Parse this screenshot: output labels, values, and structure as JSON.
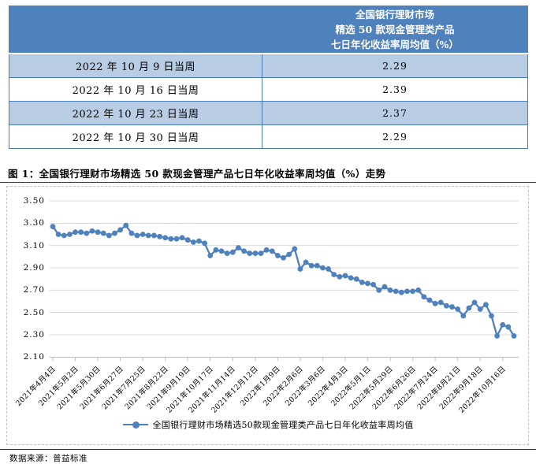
{
  "table": {
    "header_lines": [
      "全国银行理财市场",
      "精选 50 款现金管理类产品",
      "七日年化收益率周均值（%）"
    ],
    "rows": [
      {
        "week": "2022 年 10 月 9 日当周",
        "value": "2.29"
      },
      {
        "week": "2022 年 10 月 16 日当周",
        "value": "2.39"
      },
      {
        "week": "2022 年 10 月 23 日当周",
        "value": "2.37"
      },
      {
        "week": "2022 年 10 月 30 日当周",
        "value": "2.29"
      }
    ]
  },
  "figure": {
    "title": "图 1：全国银行理财市场精选 50 款现金管理产品七日年化收益率周均值（%）走势",
    "source": "数据来源：普益标准"
  },
  "chart_data": {
    "type": "line",
    "title": "全国银行理财市场精选50款现金管理产品七日年化收益率周均值（%）走势",
    "legend_position": "bottom",
    "grid": true,
    "ylim": [
      2.1,
      3.5
    ],
    "y_step": 0.2,
    "y_tick_labels": [
      "3.50",
      "3.30",
      "3.10",
      "2.90",
      "2.70",
      "2.50",
      "2.30",
      "2.10"
    ],
    "x_tick_labels": [
      "2021年4月4日",
      "2021年5月2日",
      "2021年5月30日",
      "2021年6月27日",
      "2021年7月25日",
      "2021年8月22日",
      "2021年9月19日",
      "2021年10月17日",
      "2021年11月14日",
      "2021年12月12日",
      "2022年1月9日",
      "2022年2月6日",
      "2022年3月6日",
      "2022年4月3日",
      "2022年5月1日",
      "2022年5月29日",
      "2022年6月26日",
      "2022年7月24日",
      "2022年8月21日",
      "2022年9月18日",
      "2022年10月16日"
    ],
    "tick_every": 4,
    "series": [
      {
        "name": "全国银行理财市场精选50款现金管理类产品七日年化收益率周均值",
        "values": [
          3.27,
          3.2,
          3.19,
          3.2,
          3.22,
          3.22,
          3.21,
          3.23,
          3.22,
          3.21,
          3.19,
          3.21,
          3.24,
          3.28,
          3.21,
          3.19,
          3.2,
          3.19,
          3.19,
          3.18,
          3.17,
          3.16,
          3.16,
          3.17,
          3.15,
          3.13,
          3.14,
          3.12,
          3.01,
          3.06,
          3.05,
          3.03,
          3.04,
          3.08,
          3.05,
          3.03,
          3.03,
          3.03,
          3.06,
          3.05,
          3.01,
          2.99,
          3.02,
          3.07,
          2.89,
          2.95,
          2.92,
          2.92,
          2.9,
          2.89,
          2.84,
          2.82,
          2.83,
          2.81,
          2.8,
          2.77,
          2.76,
          2.75,
          2.7,
          2.73,
          2.7,
          2.69,
          2.68,
          2.69,
          2.69,
          2.7,
          2.64,
          2.61,
          2.58,
          2.59,
          2.56,
          2.55,
          2.53,
          2.47,
          2.54,
          2.59,
          2.53,
          2.57,
          2.47,
          2.29,
          2.39,
          2.37,
          2.29
        ]
      }
    ]
  },
  "colors": {
    "header_bg": "#4f81bd",
    "row_alt_bg": "#b8cce4",
    "table_border": "#4a7cb5",
    "line": "#4f81bd",
    "gridline": "#d9d9d9",
    "axis": "#bfbfbf"
  }
}
